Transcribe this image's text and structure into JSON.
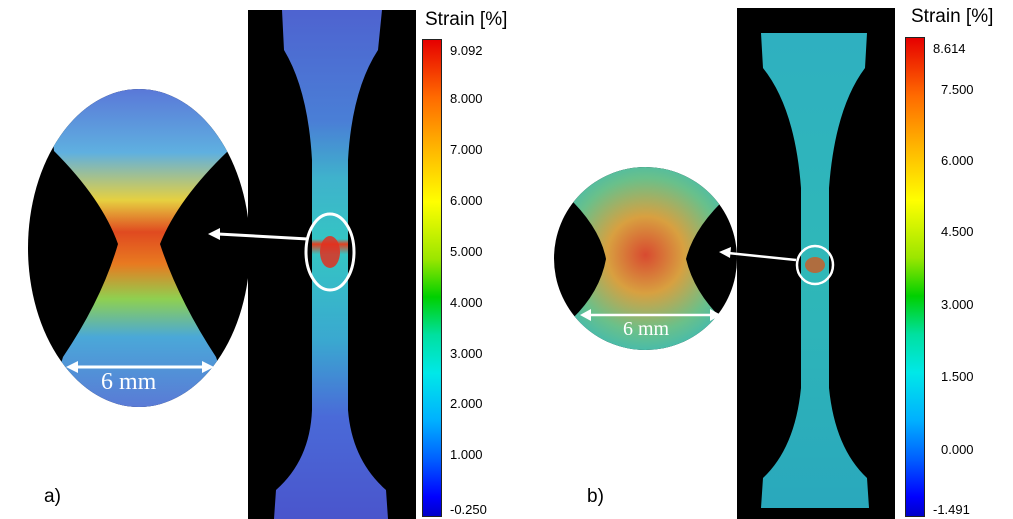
{
  "panels": [
    {
      "label": "a)",
      "legend_title": "Strain [%]",
      "ticks": [
        "9.092",
        "8.000",
        "7.000",
        "6.000",
        "5.000",
        "4.000",
        "3.000",
        "2.000",
        "1.000",
        "-0.250"
      ],
      "scale_label": "6 mm"
    },
    {
      "label": "b)",
      "legend_title": "Strain [%]",
      "ticks": [
        "8.614",
        "7.500",
        "6.000",
        "4.500",
        "3.000",
        "1.500",
        "0.000",
        "-1.491"
      ],
      "scale_label": "6 mm"
    }
  ],
  "colors": {
    "background": "#ffffff",
    "specimen_a": "#4a6ad8",
    "specimen_b": "#2ab6b6",
    "hot": "#e03020"
  }
}
